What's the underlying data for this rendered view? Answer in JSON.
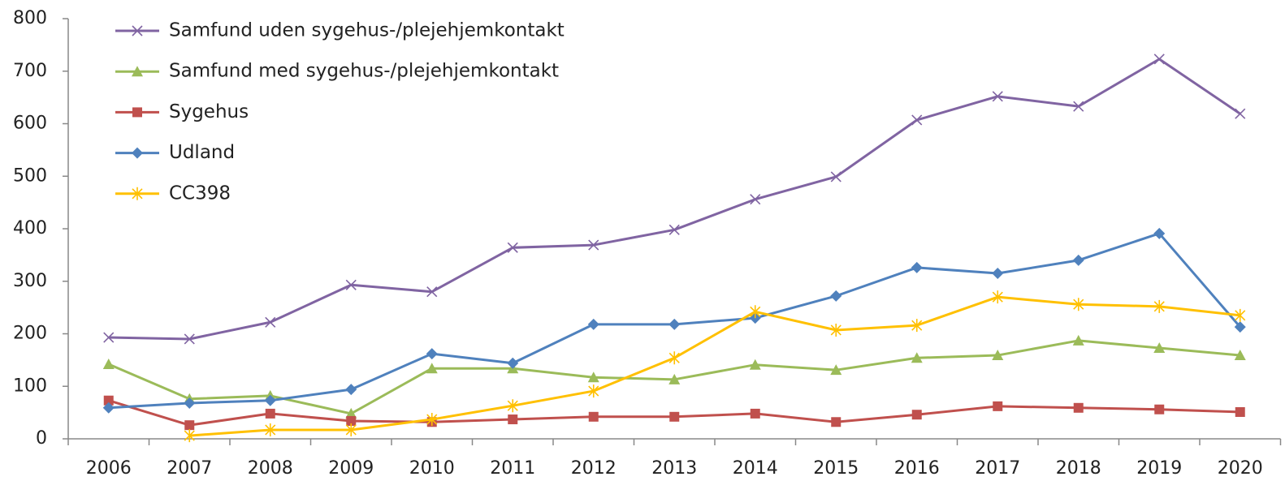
{
  "chart_data": {
    "type": "line",
    "categories": [
      "2006",
      "2007",
      "2008",
      "2009",
      "2010",
      "2011",
      "2012",
      "2013",
      "2014",
      "2015",
      "2016",
      "2017",
      "2018",
      "2019",
      "2020"
    ],
    "series": [
      {
        "name": "Samfund uden sygehus-/plejehjemkontakt",
        "color": "#8064a2",
        "marker": "x",
        "values": [
          193,
          190,
          222,
          293,
          280,
          364,
          369,
          398,
          456,
          499,
          607,
          652,
          633,
          723,
          619
        ]
      },
      {
        "name": "Samfund med sygehus-/plejehjemkontakt",
        "color": "#9bbb59",
        "marker": "triangle",
        "values": [
          142,
          76,
          82,
          48,
          134,
          134,
          117,
          113,
          141,
          131,
          154,
          159,
          187,
          173,
          159
        ]
      },
      {
        "name": "Sygehus",
        "color": "#c0504d",
        "marker": "square",
        "values": [
          73,
          26,
          48,
          34,
          32,
          37,
          42,
          42,
          48,
          32,
          46,
          62,
          59,
          56,
          51
        ]
      },
      {
        "name": "Udland",
        "color": "#4f81bd",
        "marker": "diamond",
        "values": [
          59,
          68,
          73,
          94,
          162,
          144,
          218,
          218,
          230,
          272,
          326,
          315,
          340,
          391,
          213
        ]
      },
      {
        "name": "CC398",
        "color": "#ffc000",
        "marker": "asterisk",
        "values": [
          null,
          6,
          17,
          17,
          37,
          63,
          91,
          154,
          242,
          207,
          216,
          270,
          256,
          252,
          235
        ]
      }
    ],
    "ylim": [
      0,
      800
    ],
    "yticks": [
      0,
      100,
      200,
      300,
      400,
      500,
      600,
      700,
      800
    ],
    "legend": "top-left"
  }
}
